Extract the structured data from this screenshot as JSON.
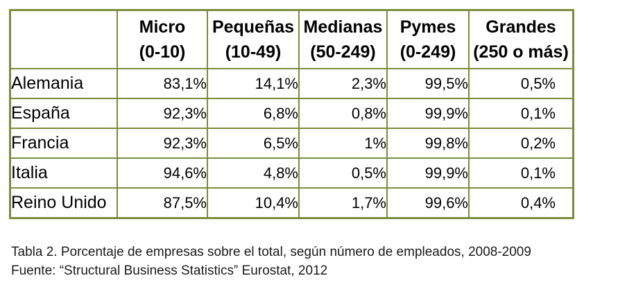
{
  "table": {
    "headers": [
      {
        "line1": "Micro",
        "line2": "(0-10)"
      },
      {
        "line1": "Pequeñas",
        "line2": "(10-49)"
      },
      {
        "line1": "Medianas",
        "line2": "(50-249)"
      },
      {
        "line1": "Pymes",
        "line2": "(0-249)"
      },
      {
        "line1": "Grandes",
        "line2": "(250 o más)"
      }
    ],
    "rows": [
      {
        "country": "Alemania",
        "values": [
          "83,1%",
          "14,1%",
          "2,3%",
          "99,5%",
          "0,5%"
        ]
      },
      {
        "country": "España",
        "values": [
          "92,3%",
          "6,8%",
          "0,8%",
          "99,9%",
          "0,1%"
        ]
      },
      {
        "country": "Francia",
        "values": [
          "92,3%",
          "6,5%",
          "1%",
          "99,8%",
          "0,2%"
        ]
      },
      {
        "country": "Italia",
        "values": [
          "94,6%",
          "4,8%",
          "0,5%",
          "99,9%",
          "0,1%"
        ]
      },
      {
        "country": "Reino Unido",
        "values": [
          "87,5%",
          "10,4%",
          "1,7%",
          "99,6%",
          "0,4%"
        ]
      }
    ]
  },
  "caption": {
    "title": "Tabla 2. Porcentaje de empresas sobre el total, según número de empleados, 2008-2009",
    "source": "Fuente: “Structural Business Statistics” Eurostat, 2012"
  },
  "colors": {
    "border": "#7a8c3a"
  }
}
